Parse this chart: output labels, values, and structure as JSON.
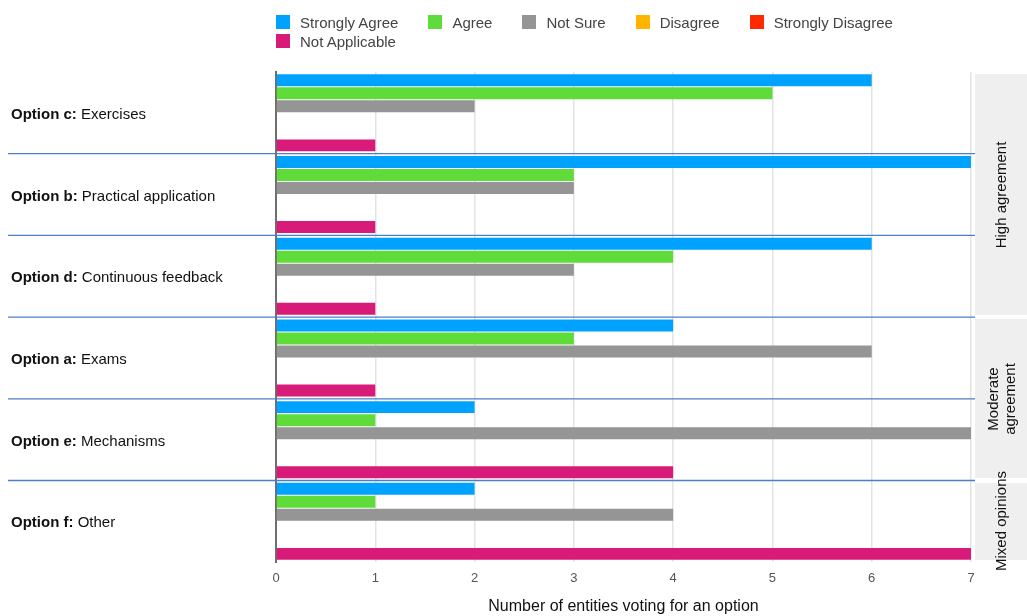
{
  "chart_data": {
    "type": "bar",
    "orientation": "horizontal",
    "xlabel": "Number of entities voting for an option",
    "categories": [
      "Option c: Exercises",
      "Option b: Practical application",
      "Option d: Continuous feedback",
      "Option a: Exams",
      "Option e: Mechanisms",
      "Option f: Other"
    ],
    "series": [
      {
        "name": "Strongly Agree",
        "color": "#00a2ff",
        "values": [
          6,
          7,
          6,
          4,
          2,
          2
        ]
      },
      {
        "name": "Agree",
        "color": "#5fdc3a",
        "values": [
          5,
          3,
          4,
          3,
          1,
          1
        ]
      },
      {
        "name": "Not Sure",
        "color": "#959595",
        "values": [
          2,
          3,
          3,
          6,
          7,
          4
        ]
      },
      {
        "name": "Disagree",
        "color": "#ffb400",
        "values": [
          0,
          0,
          0,
          0,
          0,
          0
        ]
      },
      {
        "name": "Strongly Disagree",
        "color": "#ff2a00",
        "values": [
          0,
          0,
          0,
          0,
          0,
          0
        ]
      },
      {
        "name": "Not Applicable",
        "color": "#d81b78",
        "values": [
          1,
          1,
          1,
          1,
          4,
          7
        ]
      }
    ],
    "xlim": [
      0,
      7
    ],
    "xticks": [
      0,
      1,
      2,
      3,
      4,
      5,
      6,
      7
    ],
    "grid": true,
    "legend": "top",
    "annotations": [
      "High agreement",
      "Moderate agreement",
      "Mixed opinions"
    ]
  }
}
